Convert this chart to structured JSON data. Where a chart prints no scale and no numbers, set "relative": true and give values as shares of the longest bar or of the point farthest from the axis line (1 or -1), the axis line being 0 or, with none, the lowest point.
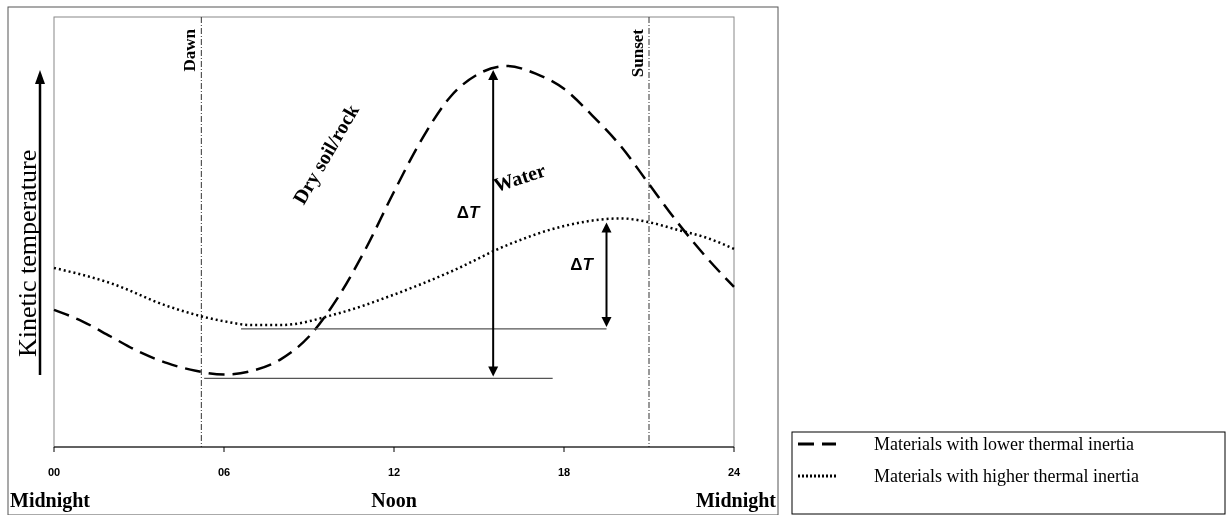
{
  "chart_data": {
    "type": "line",
    "relative": true,
    "ylabel": "Kinetic temperature",
    "xlim": [
      0,
      24
    ],
    "xticks": [
      {
        "value": 0,
        "label": "00"
      },
      {
        "value": 6,
        "label": "06"
      },
      {
        "value": 12,
        "label": "12"
      },
      {
        "value": 18,
        "label": "18"
      },
      {
        "value": 24,
        "label": "24"
      }
    ],
    "series": [
      {
        "name": "Materials with lower thermal inertia",
        "color": "#000000",
        "line_style": "dashed",
        "x": [
          0,
          1,
          2,
          3,
          4,
          5,
          6,
          7,
          8,
          9,
          10,
          11,
          12,
          13,
          14,
          15,
          16,
          17,
          18,
          19,
          20,
          21,
          22,
          23,
          24
        ],
        "values": [
          0.36,
          0.33,
          0.29,
          0.25,
          0.22,
          0.2,
          0.19,
          0.2,
          0.23,
          0.29,
          0.39,
          0.52,
          0.67,
          0.81,
          0.92,
          0.98,
          1.0,
          0.98,
          0.94,
          0.87,
          0.79,
          0.69,
          0.59,
          0.5,
          0.42
        ]
      },
      {
        "name": "Materials with higher thermal inertia",
        "color": "#000000",
        "line_style": "dotted",
        "x": [
          0,
          2,
          4,
          6,
          7,
          8,
          10,
          12,
          14,
          16,
          18,
          20,
          21,
          22,
          23,
          24
        ],
        "values": [
          0.47,
          0.43,
          0.37,
          0.33,
          0.32,
          0.32,
          0.35,
          0.4,
          0.46,
          0.53,
          0.58,
          0.6,
          0.59,
          0.57,
          0.55,
          0.52
        ]
      },
      {
        "color": "#555555",
        "line_style": "solid",
        "x": [
          5.3,
          17.6
        ],
        "values": [
          0.18,
          0.18
        ]
      },
      {
        "color": "#555555",
        "line_style": "solid",
        "x": [
          6.6,
          19.5
        ],
        "values": [
          0.31,
          0.31
        ]
      }
    ],
    "ref_lines": [
      {
        "axis": "x",
        "value": 5.2,
        "label": "Dawn",
        "line_style": "dashed"
      },
      {
        "axis": "x",
        "value": 21,
        "label": "Sunset",
        "line_style": "dashed"
      }
    ],
    "annotations": [
      "Dry soil/rock",
      "Water",
      "ΔT",
      "ΔT",
      "Midnight",
      "Noon",
      "Midnight"
    ],
    "legend": "bottom right"
  }
}
